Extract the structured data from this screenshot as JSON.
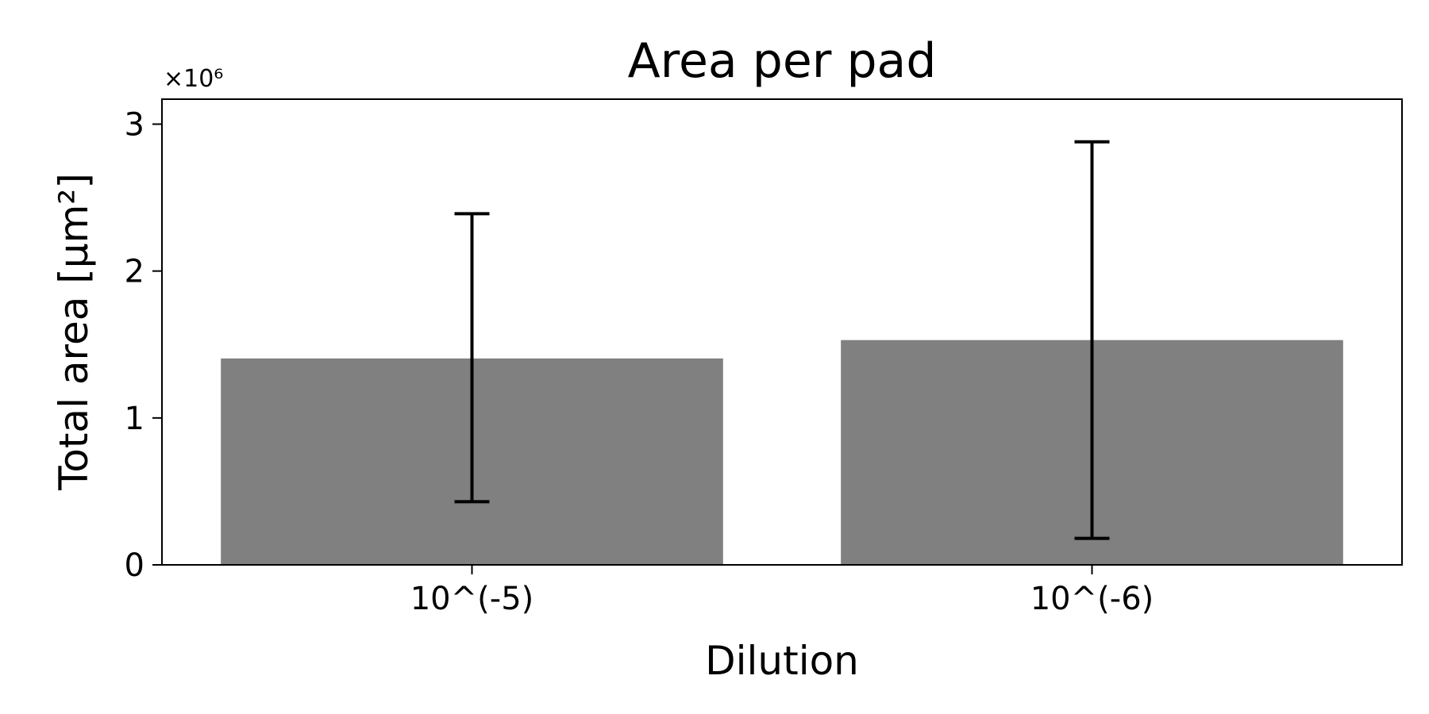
{
  "chart_data": {
    "type": "bar",
    "title": "Area per pad",
    "xlabel": "Dilution",
    "ylabel": "Total area [μm²]",
    "y_multiplier": "×10⁶",
    "categories": [
      "10^(-5)",
      "10^(-6)"
    ],
    "values": [
      1.405,
      1.53
    ],
    "error_low": [
      0.43,
      0.18
    ],
    "error_high": [
      2.39,
      2.88
    ],
    "ylim": [
      0,
      3.17
    ],
    "yticks": [
      0,
      1,
      2,
      3
    ],
    "bar_color": "#808080",
    "errorbar_color": "#000000",
    "grid": false,
    "legend": "none"
  }
}
